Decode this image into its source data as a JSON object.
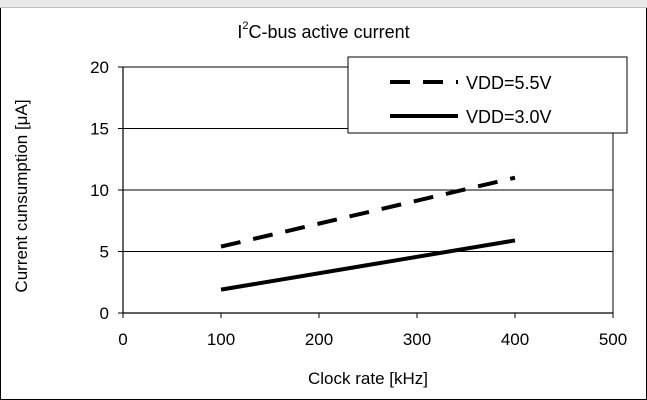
{
  "chart_data": {
    "type": "line",
    "title": {
      "prefix": "I",
      "sup": "2",
      "rest": "C-bus active current"
    },
    "xlabel": "Clock rate [kHz]",
    "ylabel": "Current cunsumption [μA]",
    "xlim": [
      0,
      500
    ],
    "ylim": [
      0,
      20
    ],
    "xticks": [
      0,
      100,
      200,
      300,
      400,
      500
    ],
    "yticks": [
      0,
      5,
      10,
      15,
      20
    ],
    "grid": "horizontal",
    "legend_position": "top-right",
    "series": [
      {
        "name": "VDD=5.5V",
        "style": "dashed",
        "color": "#000000",
        "x": [
          100,
          400
        ],
        "y": [
          5.4,
          11.0
        ]
      },
      {
        "name": "VDD=3.0V",
        "style": "solid",
        "color": "#000000",
        "x": [
          100,
          400
        ],
        "y": [
          1.9,
          5.9
        ]
      }
    ]
  }
}
